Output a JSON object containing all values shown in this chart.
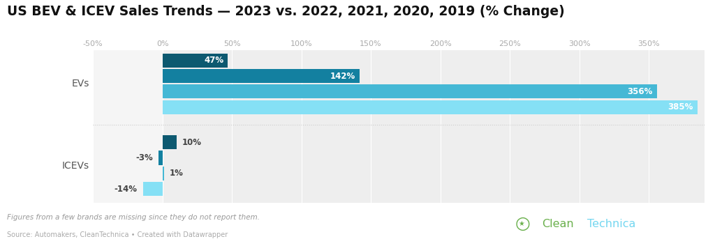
{
  "title": "US BEV & ICEV Sales Trends — 2023 vs. 2022, 2021, 2020, 2019 (% Change)",
  "title_fontsize": 13.5,
  "background_color": "#ffffff",
  "plot_bg_evs": "#ebebeb",
  "plot_bg_icevs": "#ebebeb",
  "plot_bg_left": "#f5f5f5",
  "xlim": [
    -50,
    390
  ],
  "xticks": [
    -50,
    0,
    50,
    100,
    150,
    200,
    250,
    300,
    350
  ],
  "footnote1": "Figures from a few brands are missing since they do not report them.",
  "footnote2": "Source: Automakers, CleanTechnica • Created with Datawrapper",
  "evs_label": "EVs",
  "icevs_label": "ICEVs",
  "ev_bars": [
    {
      "value": 47,
      "color": "#0d5970",
      "label": "47%",
      "label_color": "white"
    },
    {
      "value": 142,
      "color": "#1380a0",
      "label": "142%",
      "label_color": "white"
    },
    {
      "value": 356,
      "color": "#45b8d5",
      "label": "356%",
      "label_color": "white"
    },
    {
      "value": 385,
      "color": "#85e0f5",
      "label": "385%",
      "label_color": "white"
    }
  ],
  "icev_bars": [
    {
      "value": 10,
      "color": "#0d5970",
      "label": "10%"
    },
    {
      "value": -3,
      "color": "#1380a0",
      "label": "-3%"
    },
    {
      "value": 1,
      "color": "#45b8d5",
      "label": "1%"
    },
    {
      "value": -14,
      "color": "#85e0f5",
      "label": "-14%"
    }
  ],
  "divider_color": "#cccccc",
  "grid_color": "#ffffff",
  "tick_color": "#aaaaaa",
  "label_color": "#555555",
  "cleantechnica_green": "#6ab04c",
  "cleantechnica_blue": "#74d7f0"
}
